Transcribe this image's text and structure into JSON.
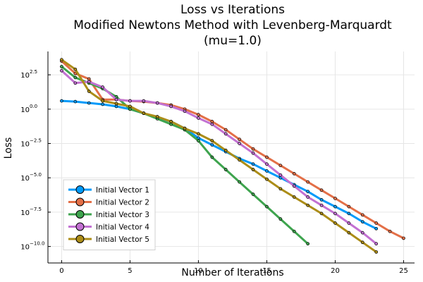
{
  "chart_data": {
    "type": "line",
    "title": [
      "Loss vs Iterations",
      "Modified Newtons Method with Levenberg-Marquardt",
      "(mu=1.0)"
    ],
    "xlabel": "Number of Iterations",
    "ylabel": "Loss",
    "xlim": [
      -1,
      25.8
    ],
    "ylim_log10": [
      -11.2,
      4.2
    ],
    "y_scale": "log10",
    "x_ticks": [
      0,
      5,
      10,
      15,
      20,
      25
    ],
    "y_ticks": [
      {
        "base": "10",
        "exp": "2.5",
        "log10": 2.5
      },
      {
        "base": "10",
        "exp": "0.0",
        "log10": 0.0
      },
      {
        "base": "10",
        "exp": "−2.5",
        "log10": -2.5
      },
      {
        "base": "10",
        "exp": "−5.0",
        "log10": -5.0
      },
      {
        "base": "10",
        "exp": "−7.5",
        "log10": -7.5
      },
      {
        "base": "10",
        "exp": "−10.0",
        "log10": -10.0
      }
    ],
    "grid": true,
    "legend_position": "bottom-left",
    "series": [
      {
        "name": "Initial Vector 1",
        "color": "#009AFA",
        "x": [
          0,
          1,
          2,
          3,
          4,
          5,
          6,
          7,
          8,
          9,
          10,
          11,
          12,
          13,
          14,
          15,
          16,
          17,
          18,
          19,
          20,
          21,
          22,
          23
        ],
        "log10_y": [
          0.6,
          0.55,
          0.45,
          0.35,
          0.2,
          0.0,
          -0.3,
          -0.6,
          -0.9,
          -1.4,
          -2.1,
          -2.6,
          -3.1,
          -3.6,
          -4.0,
          -4.5,
          -5.0,
          -5.5,
          -6.0,
          -6.6,
          -7.1,
          -7.6,
          -8.2,
          -8.7
        ]
      },
      {
        "name": "Initial Vector 2",
        "color": "#E36F47",
        "x": [
          0,
          1,
          2,
          3,
          4,
          5,
          6,
          7,
          8,
          9,
          10,
          11,
          12,
          13,
          14,
          15,
          16,
          17,
          18,
          19,
          20,
          21,
          22,
          23,
          24,
          25
        ],
        "log10_y": [
          3.5,
          2.6,
          2.2,
          0.7,
          0.7,
          0.6,
          0.55,
          0.45,
          0.3,
          0.0,
          -0.4,
          -0.9,
          -1.5,
          -2.2,
          -2.9,
          -3.5,
          -4.1,
          -4.7,
          -5.3,
          -5.9,
          -6.5,
          -7.1,
          -7.7,
          -8.3,
          -8.9,
          -9.4
        ]
      },
      {
        "name": "Initial Vector 3",
        "color": "#3EA44E",
        "x": [
          0,
          1,
          2,
          3,
          4,
          5,
          6,
          7,
          8,
          9,
          10,
          11,
          12,
          13,
          14,
          15,
          16,
          17,
          18
        ],
        "log10_y": [
          3.1,
          2.3,
          1.9,
          1.5,
          0.9,
          0.0,
          -0.3,
          -0.7,
          -1.1,
          -1.5,
          -2.3,
          -3.5,
          -4.4,
          -5.3,
          -6.2,
          -7.1,
          -8.0,
          -8.9,
          -9.8
        ]
      },
      {
        "name": "Initial Vector 4",
        "color": "#C271D2",
        "x": [
          0,
          1,
          2,
          3,
          4,
          5,
          6,
          7,
          8,
          9,
          10,
          11,
          12,
          13,
          14,
          15,
          16,
          17,
          18,
          19,
          20,
          21,
          22,
          23
        ],
        "log10_y": [
          2.8,
          1.9,
          2.0,
          1.6,
          0.7,
          0.6,
          0.6,
          0.45,
          0.2,
          -0.15,
          -0.65,
          -1.1,
          -1.8,
          -2.5,
          -3.2,
          -4.0,
          -4.8,
          -5.6,
          -6.4,
          -7.0,
          -7.6,
          -8.3,
          -9.0,
          -9.8
        ]
      },
      {
        "name": "Initial Vector 5",
        "color": "#AC8D18",
        "x": [
          0,
          1,
          2,
          3,
          4,
          5,
          6,
          7,
          8,
          9,
          10,
          11,
          12,
          13,
          14,
          15,
          16,
          17,
          18,
          19,
          20,
          21,
          22,
          23
        ],
        "log10_y": [
          3.6,
          2.9,
          1.3,
          0.6,
          0.4,
          0.2,
          -0.3,
          -0.55,
          -0.9,
          -1.4,
          -1.8,
          -2.3,
          -3.0,
          -3.7,
          -4.4,
          -5.1,
          -5.8,
          -6.4,
          -7.0,
          -7.6,
          -8.3,
          -9.0,
          -9.7,
          -10.4
        ]
      }
    ]
  }
}
